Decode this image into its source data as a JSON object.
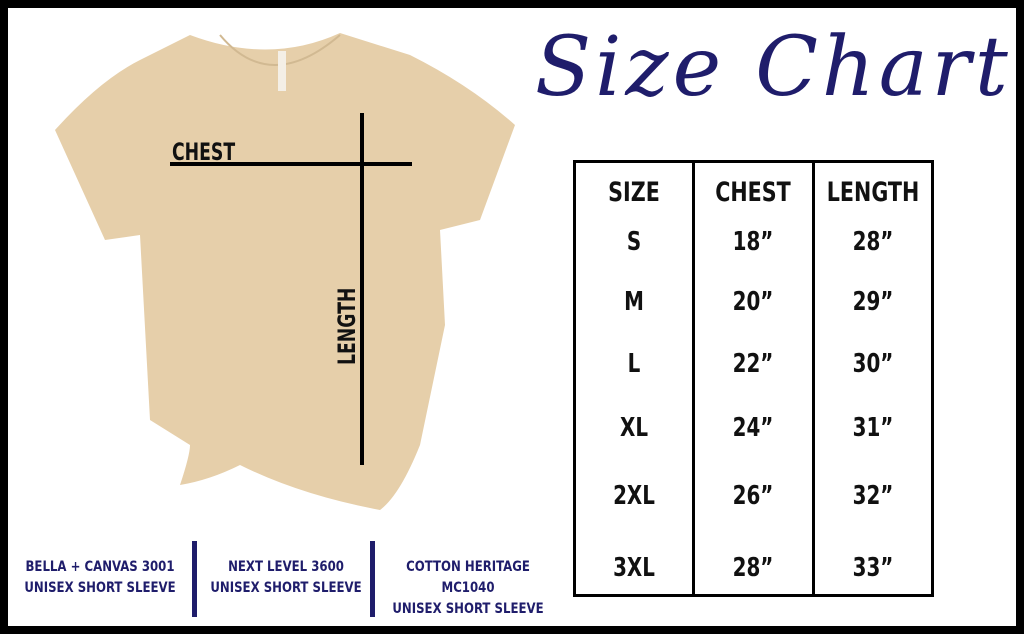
{
  "title": "Size Chart",
  "shirt_labels": {
    "chest": "CHEST",
    "length": "LENGTH"
  },
  "table": {
    "headers": [
      "SIZE",
      "CHEST",
      "LENGTH"
    ],
    "rows": [
      [
        "S",
        "18”",
        "28”"
      ],
      [
        "M",
        "20”",
        "29”"
      ],
      [
        "L",
        "22”",
        "30”"
      ],
      [
        "XL",
        "24”",
        "31”"
      ],
      [
        "2XL",
        "26”",
        "32”"
      ],
      [
        "3XL",
        "28”",
        "33”"
      ]
    ]
  },
  "brands": [
    {
      "line1": "BELLA + CANVAS 3001",
      "line2": "UNISEX SHORT SLEEVE"
    },
    {
      "line1": "NEXT LEVEL 3600",
      "line2": "UNISEX SHORT SLEEVE"
    },
    {
      "line1": "COTTON HERITAGE MC1040",
      "line2": "UNISEX SHORT SLEEVE"
    }
  ],
  "colors": {
    "accent": "#1f1d6b",
    "shirt": "#e6cfaa",
    "border": "#000000"
  }
}
